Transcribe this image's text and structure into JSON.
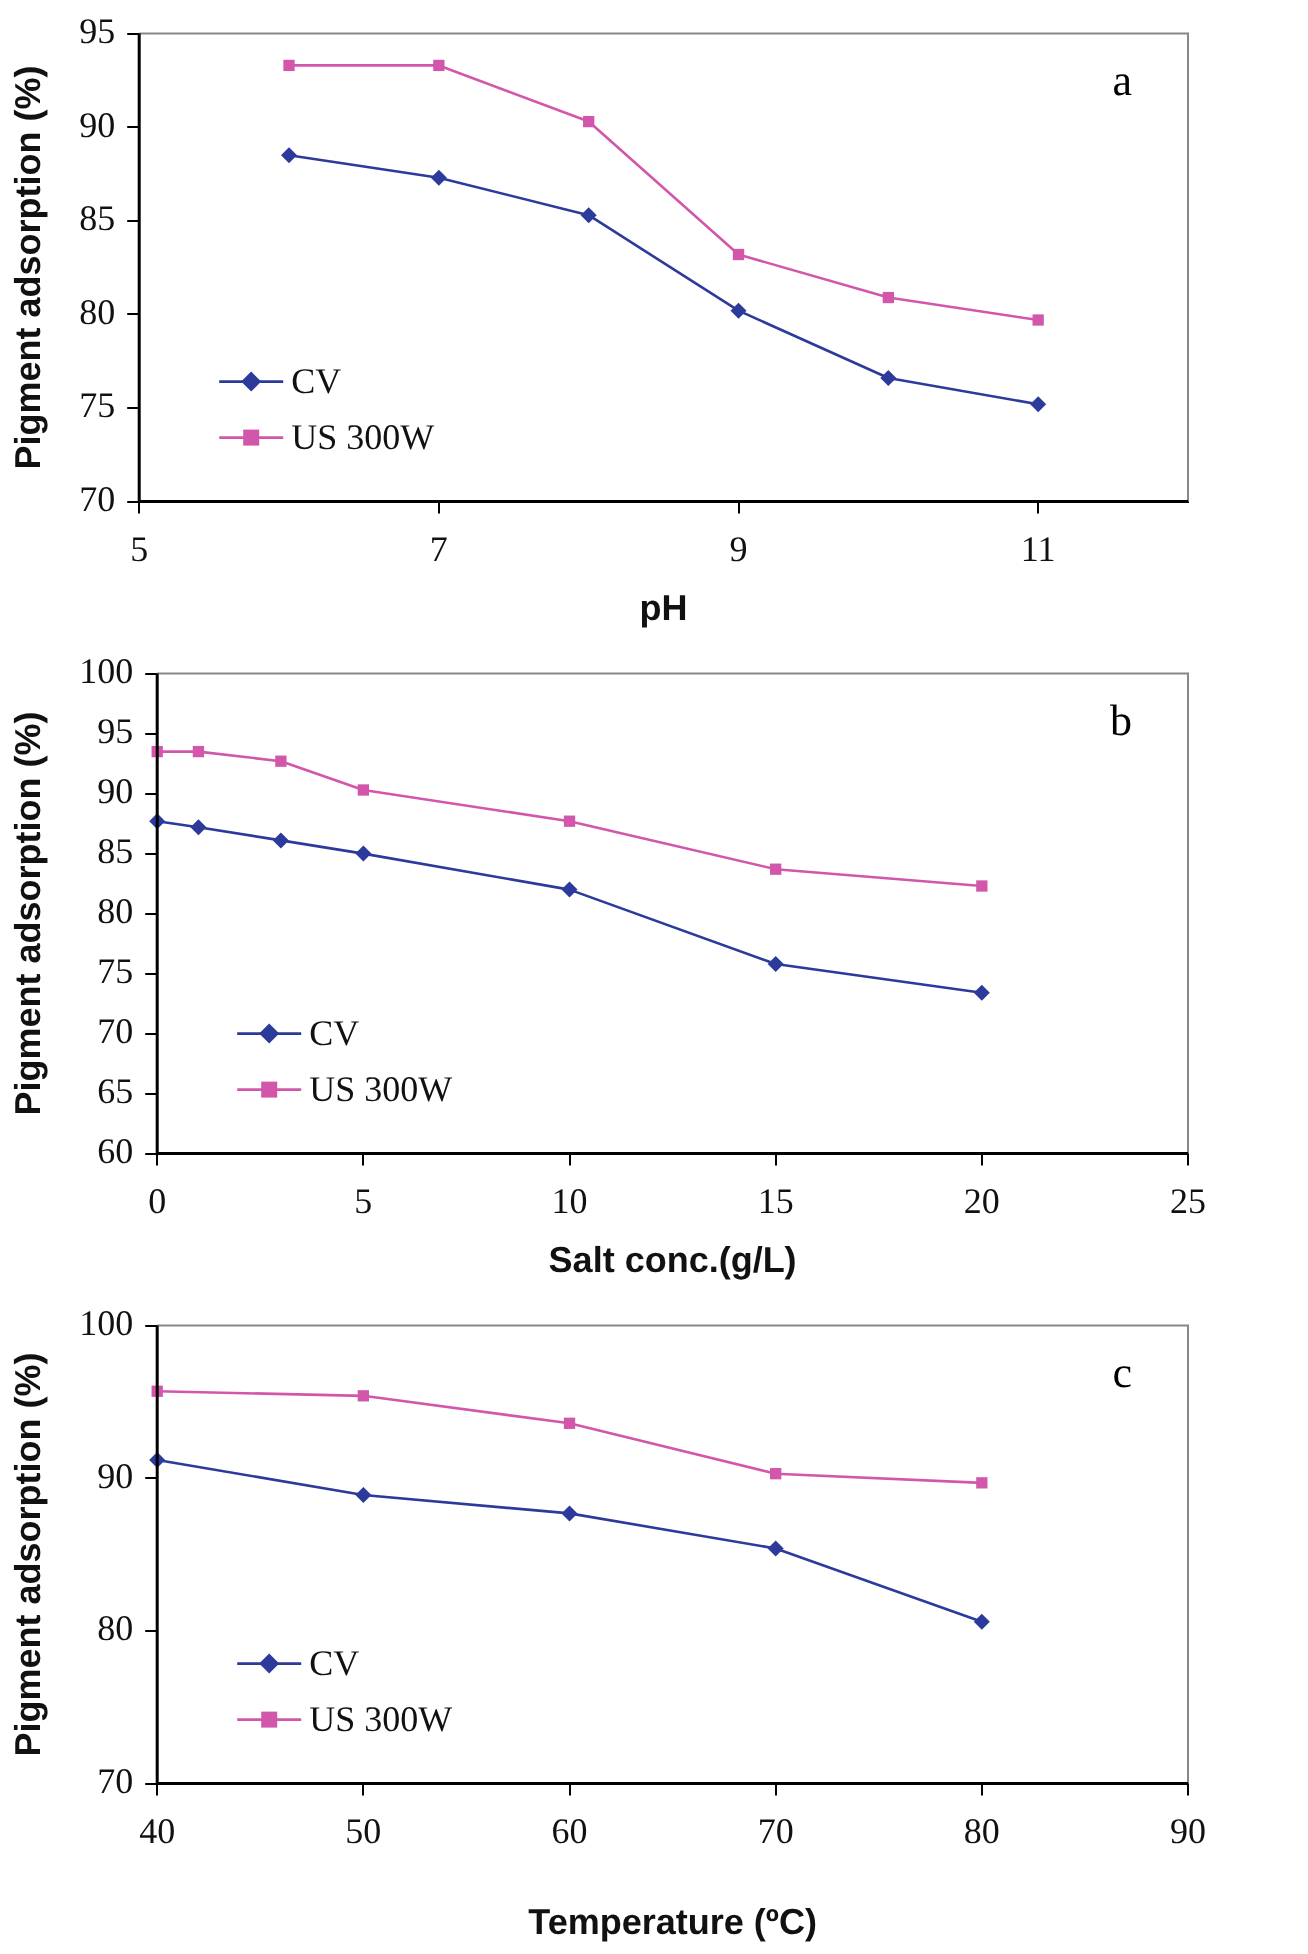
{
  "chart_data": [
    {
      "type": "line",
      "xlabel": "pH",
      "ylabel": "Pigment adsorption (%)",
      "x": [
        6,
        7,
        8,
        9,
        10,
        11
      ],
      "xlim": [
        5,
        12
      ],
      "xticks": [
        5,
        7,
        9,
        11
      ],
      "ylim": [
        70,
        95
      ],
      "yticks": [
        70,
        75,
        80,
        85,
        90,
        95
      ],
      "grid": false,
      "legend": "bottom left",
      "line_style": "solid",
      "annotations": [
        "a"
      ],
      "series": [
        {
          "name": "CV",
          "color": "#2b3a9b",
          "marker": "diamond",
          "values": [
            88.5,
            87.3,
            85.3,
            80.2,
            76.6,
            75.2
          ]
        },
        {
          "name": "US 300W",
          "color": "#d257ab",
          "marker": "square",
          "values": [
            93.3,
            93.3,
            90.3,
            83.2,
            80.9,
            79.7
          ]
        }
      ]
    },
    {
      "type": "line",
      "xlabel": "Salt conc.(g/L)",
      "ylabel": "Pigment adsorption (%)",
      "x": [
        0,
        1,
        3,
        5,
        10,
        15,
        20
      ],
      "xlim": [
        0,
        25
      ],
      "xticks": [
        0,
        5,
        10,
        15,
        20,
        25
      ],
      "ylim": [
        60,
        100
      ],
      "yticks": [
        60,
        65,
        70,
        75,
        80,
        85,
        90,
        95,
        100
      ],
      "grid": false,
      "legend": "bottom left",
      "line_style": "solid",
      "annotations": [
        "b"
      ],
      "series": [
        {
          "name": "CV",
          "color": "#2b3a9b",
          "marker": "diamond",
          "values": [
            87.7,
            87.2,
            86.1,
            85.0,
            82.0,
            75.8,
            73.4
          ]
        },
        {
          "name": "US 300W",
          "color": "#d257ab",
          "marker": "square",
          "values": [
            93.5,
            93.5,
            92.7,
            90.3,
            87.7,
            83.7,
            82.3
          ]
        }
      ]
    },
    {
      "type": "line",
      "xlabel": "Temperature (ºC)",
      "ylabel": "Pigment adsorption (%)",
      "x": [
        40,
        50,
        60,
        70,
        80
      ],
      "xlim": [
        40,
        90
      ],
      "xticks": [
        40,
        50,
        60,
        70,
        80,
        90
      ],
      "ylim": [
        70,
        100
      ],
      "yticks": [
        70,
        80,
        90,
        100
      ],
      "grid": false,
      "legend": "bottom left",
      "line_style": "solid",
      "annotations": [
        "c"
      ],
      "series": [
        {
          "name": "CV",
          "color": "#2b3a9b",
          "marker": "diamond",
          "values": [
            91.2,
            88.9,
            87.7,
            85.4,
            80.6
          ]
        },
        {
          "name": "US 300W",
          "color": "#d257ab",
          "marker": "square",
          "values": [
            95.7,
            95.4,
            93.6,
            90.3,
            89.7
          ]
        }
      ]
    }
  ]
}
